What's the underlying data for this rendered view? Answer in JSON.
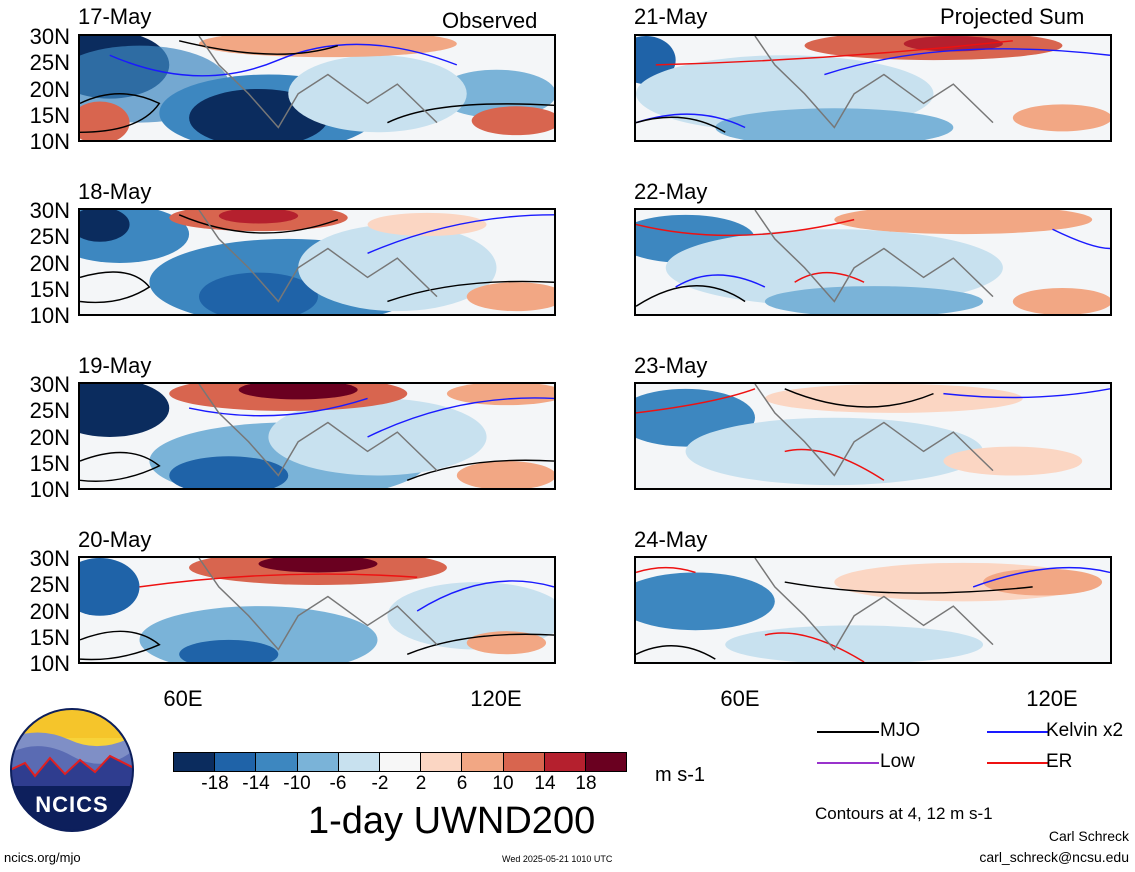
{
  "panels": [
    {
      "date": "17-May",
      "corner": "Observed",
      "lats": [
        "30N",
        "25N",
        "20N",
        "15N",
        "10N"
      ]
    },
    {
      "date": "18-May",
      "corner": "",
      "lats": [
        "30N",
        "25N",
        "20N",
        "15N",
        "10N"
      ]
    },
    {
      "date": "19-May",
      "corner": "",
      "lats": [
        "30N",
        "25N",
        "20N",
        "15N",
        "10N"
      ]
    },
    {
      "date": "20-May",
      "corner": "",
      "lats": [
        "30N",
        "25N",
        "20N",
        "15N",
        "10N"
      ]
    },
    {
      "date": "21-May",
      "corner": "Projected Sum"
    },
    {
      "date": "22-May",
      "corner": ""
    },
    {
      "date": "23-May",
      "corner": ""
    },
    {
      "date": "24-May",
      "corner": ""
    }
  ],
  "lon_labels": {
    "left": [
      "60E",
      "120E"
    ],
    "right": [
      "60E",
      "120E"
    ]
  },
  "colorbar": {
    "colors": [
      "#0b2c5e",
      "#1f63a8",
      "#3d87c0",
      "#7ab3d8",
      "#c8e1ef",
      "#f7f7f7",
      "#fbd6c3",
      "#f2a784",
      "#d8654f",
      "#b5202e",
      "#6a0020"
    ],
    "ticks": [
      "-18",
      "-14",
      "-10",
      "-6",
      "-2",
      "2",
      "6",
      "10",
      "14",
      "18"
    ],
    "unit": "m s-1",
    "title": "1-day UWND200"
  },
  "legend": {
    "mjo": {
      "label": "MJO",
      "color": "#000000"
    },
    "kelvin": {
      "label": "Kelvin x2",
      "color": "#1a1aff"
    },
    "low": {
      "label": "Low",
      "color": "#9933cc"
    },
    "er": {
      "label": "ER",
      "color": "#ee1111"
    },
    "contours_note": "Contours at 4, 12 m s-1"
  },
  "logo": {
    "text": "NCICS"
  },
  "footer": {
    "url": "ncics.org/mjo",
    "timestamp": "Wed 2025-05-21 1010 UTC",
    "author": "Carl Schreck",
    "email": "carl_schreck@ncsu.edu"
  }
}
